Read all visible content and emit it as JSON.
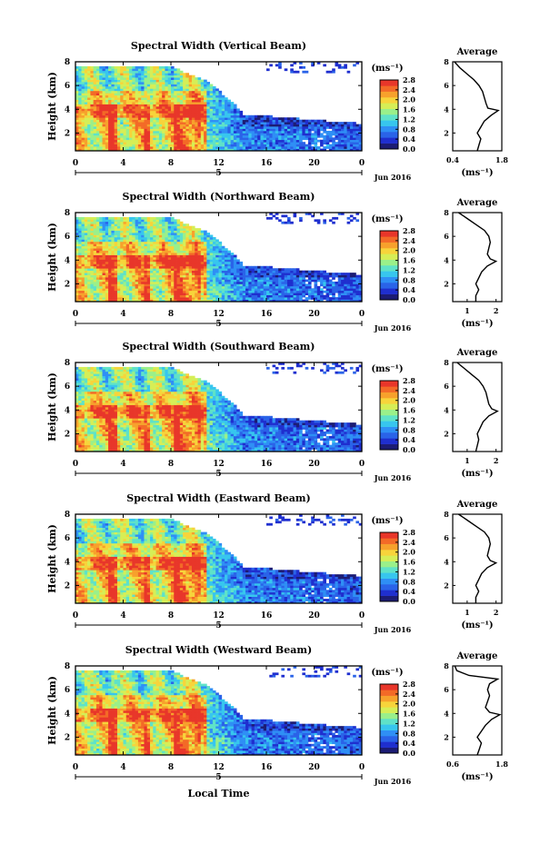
{
  "figure": {
    "xlabel": "Local Time",
    "date_label": "Jun 2016",
    "day_label": "5",
    "colorbar_unit": "(ms⁻¹)",
    "colorbar_ticks": [
      "2.8",
      "2.4",
      "2.0",
      "1.6",
      "1.2",
      "0.8",
      "0.4",
      "0.0"
    ],
    "average_title": "Average"
  },
  "colors": {
    "colormap": [
      "#1c1c74",
      "#1f2fcf",
      "#2a63e8",
      "#2f8ff5",
      "#37c6ee",
      "#5fe2c8",
      "#9af08a",
      "#d6ee56",
      "#f7d43b",
      "#f7a12c",
      "#f36a27",
      "#e8362a"
    ]
  },
  "chart_data": [
    {
      "type": "heatmap",
      "title": "Spectral Width (Vertical Beam)",
      "ylabel": "Height (km)",
      "xlim": [
        0,
        24
      ],
      "ylim": [
        0.5,
        8
      ],
      "xticks": [
        "0",
        "4",
        "8",
        "12",
        "16",
        "20",
        "0"
      ],
      "yticks": [
        "2",
        "4",
        "6",
        "8"
      ],
      "colorbar": {
        "min": 0.0,
        "max": 2.8
      },
      "average": {
        "xlim": [
          0.4,
          1.8
        ],
        "xticks": [
          "0.4",
          "1.8"
        ],
        "xlabel": "(ms⁻¹)",
        "profile": [
          [
            1.1,
            0.5
          ],
          [
            1.15,
            1.0
          ],
          [
            1.2,
            1.5
          ],
          [
            1.1,
            2.0
          ],
          [
            1.2,
            2.5
          ],
          [
            1.3,
            3.0
          ],
          [
            1.5,
            3.5
          ],
          [
            1.7,
            3.9
          ],
          [
            1.4,
            4.1
          ],
          [
            1.35,
            4.5
          ],
          [
            1.3,
            5.0
          ],
          [
            1.25,
            5.5
          ],
          [
            1.15,
            6.0
          ],
          [
            1.0,
            6.5
          ],
          [
            0.8,
            7.0
          ],
          [
            0.6,
            7.5
          ],
          [
            0.45,
            8.0
          ]
        ]
      }
    },
    {
      "type": "heatmap",
      "title": "Spectral Width (Northward Beam)",
      "ylabel": "Height (km)",
      "xlim": [
        0,
        24
      ],
      "ylim": [
        0.5,
        8
      ],
      "xticks": [
        "0",
        "4",
        "8",
        "12",
        "16",
        "20",
        "0"
      ],
      "yticks": [
        "2",
        "4",
        "6",
        "8"
      ],
      "colorbar": {
        "min": 0.0,
        "max": 2.8
      },
      "average": {
        "xlim": [
          0.5,
          2.2
        ],
        "xticks": [
          "1",
          "2"
        ],
        "xlabel": "(ms⁻¹)",
        "profile": [
          [
            1.3,
            0.5
          ],
          [
            1.3,
            1.0
          ],
          [
            1.4,
            1.5
          ],
          [
            1.3,
            2.0
          ],
          [
            1.4,
            2.5
          ],
          [
            1.5,
            3.0
          ],
          [
            1.7,
            3.5
          ],
          [
            2.0,
            3.9
          ],
          [
            1.8,
            4.1
          ],
          [
            1.7,
            4.5
          ],
          [
            1.75,
            5.0
          ],
          [
            1.8,
            5.5
          ],
          [
            1.75,
            6.0
          ],
          [
            1.6,
            6.5
          ],
          [
            1.3,
            7.0
          ],
          [
            1.0,
            7.5
          ],
          [
            0.7,
            8.0
          ]
        ]
      }
    },
    {
      "type": "heatmap",
      "title": "Spectral Width (Southward Beam)",
      "ylabel": "Height (km)",
      "xlim": [
        0,
        24
      ],
      "ylim": [
        0.5,
        8
      ],
      "xticks": [
        "0",
        "4",
        "8",
        "12",
        "16",
        "20",
        "0"
      ],
      "yticks": [
        "2",
        "4",
        "6",
        "8"
      ],
      "colorbar": {
        "min": 0.0,
        "max": 2.8
      },
      "average": {
        "xlim": [
          0.5,
          2.2
        ],
        "xticks": [
          "1",
          "2"
        ],
        "xlabel": "(ms⁻¹)",
        "profile": [
          [
            1.3,
            0.5
          ],
          [
            1.35,
            1.0
          ],
          [
            1.4,
            1.5
          ],
          [
            1.35,
            2.0
          ],
          [
            1.45,
            2.5
          ],
          [
            1.55,
            3.0
          ],
          [
            1.75,
            3.5
          ],
          [
            2.05,
            3.9
          ],
          [
            1.85,
            4.1
          ],
          [
            1.75,
            4.5
          ],
          [
            1.7,
            5.0
          ],
          [
            1.65,
            5.5
          ],
          [
            1.55,
            6.0
          ],
          [
            1.4,
            6.5
          ],
          [
            1.15,
            7.0
          ],
          [
            0.9,
            7.5
          ],
          [
            0.65,
            8.0
          ]
        ]
      }
    },
    {
      "type": "heatmap",
      "title": "Spectral Width (Eastward Beam)",
      "ylabel": "Height (km)",
      "xlim": [
        0,
        24
      ],
      "ylim": [
        0.5,
        8
      ],
      "xticks": [
        "0",
        "4",
        "8",
        "12",
        "16",
        "20",
        "0"
      ],
      "yticks": [
        "2",
        "4",
        "6",
        "8"
      ],
      "colorbar": {
        "min": 0.0,
        "max": 2.8
      },
      "average": {
        "xlim": [
          0.5,
          2.2
        ],
        "xticks": [
          "1",
          "2"
        ],
        "xlabel": "(ms⁻¹)",
        "profile": [
          [
            1.3,
            0.5
          ],
          [
            1.3,
            1.0
          ],
          [
            1.4,
            1.5
          ],
          [
            1.3,
            2.0
          ],
          [
            1.4,
            2.5
          ],
          [
            1.5,
            3.0
          ],
          [
            1.7,
            3.5
          ],
          [
            2.0,
            3.9
          ],
          [
            1.8,
            4.1
          ],
          [
            1.7,
            4.5
          ],
          [
            1.75,
            5.0
          ],
          [
            1.8,
            5.5
          ],
          [
            1.75,
            6.0
          ],
          [
            1.6,
            6.5
          ],
          [
            1.3,
            7.0
          ],
          [
            1.0,
            7.5
          ],
          [
            0.7,
            8.0
          ]
        ]
      }
    },
    {
      "type": "heatmap",
      "title": "Spectral Width (Westward Beam)",
      "ylabel": "Height (km)",
      "xlim": [
        0,
        24
      ],
      "ylim": [
        0.5,
        8
      ],
      "xticks": [
        "0",
        "4",
        "8",
        "12",
        "16",
        "20",
        "0"
      ],
      "yticks": [
        "2",
        "4",
        "6",
        "8"
      ],
      "colorbar": {
        "min": 0.0,
        "max": 2.8
      },
      "average": {
        "xlim": [
          0.6,
          1.8
        ],
        "xticks": [
          "0.6",
          "1.8"
        ],
        "xlabel": "(ms⁻¹)",
        "profile": [
          [
            1.2,
            0.5
          ],
          [
            1.25,
            1.0
          ],
          [
            1.3,
            1.5
          ],
          [
            1.2,
            2.0
          ],
          [
            1.3,
            2.5
          ],
          [
            1.4,
            3.0
          ],
          [
            1.55,
            3.5
          ],
          [
            1.75,
            3.9
          ],
          [
            1.5,
            4.1
          ],
          [
            1.4,
            4.5
          ],
          [
            1.45,
            5.0
          ],
          [
            1.5,
            5.5
          ],
          [
            1.45,
            6.0
          ],
          [
            1.5,
            6.5
          ],
          [
            1.7,
            6.9
          ],
          [
            1.0,
            7.2
          ],
          [
            0.7,
            7.6
          ],
          [
            0.65,
            8.0
          ]
        ]
      }
    }
  ]
}
